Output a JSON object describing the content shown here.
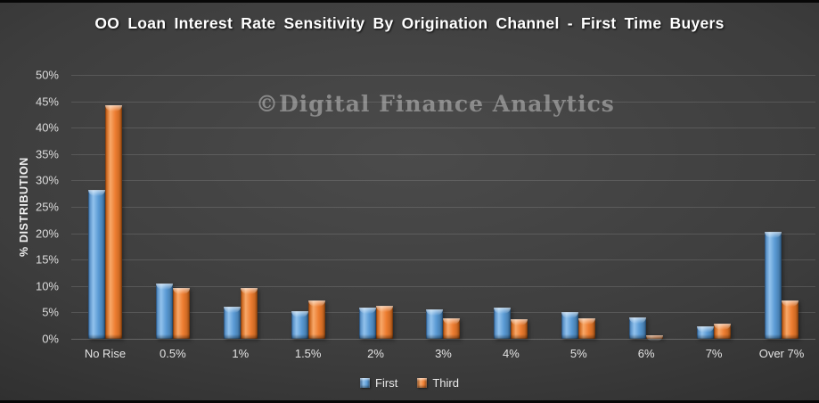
{
  "title": "OO Loan Interest Rate Sensitivity By Origination Channel - First Time Buyers",
  "watermark": "©Digital Finance Analytics",
  "colors": {
    "first_bar": "#5B9BD5",
    "third_bar": "#ED7D31",
    "background_center": "#4b4b4b",
    "background_edge": "#1d1d1d",
    "title_text": "#ffffff",
    "tick_text": "#dcdcdc",
    "watermark_text": "#9d9d9d"
  },
  "chart_data": {
    "type": "bar",
    "title": "OO Loan Interest Rate Sensitivity By Origination Channel - First Time Buyers",
    "xlabel": "",
    "ylabel": "% DISTRIBUTION",
    "ylim": [
      0,
      50
    ],
    "ytick_step": 5,
    "yticks": [
      "0%",
      "5%",
      "10%",
      "15%",
      "20%",
      "25%",
      "30%",
      "35%",
      "40%",
      "45%",
      "50%"
    ],
    "grid": true,
    "legend_position": "bottom",
    "categories": [
      "No Rise",
      "0.5%",
      "1%",
      "1.5%",
      "2%",
      "3%",
      "4%",
      "5%",
      "6%",
      "7%",
      "Over 7%"
    ],
    "series": [
      {
        "name": "First",
        "color": "#5B9BD5",
        "values": [
          28.2,
          10.5,
          6.0,
          5.3,
          5.9,
          5.5,
          5.9,
          5.0,
          4.0,
          2.4,
          20.3
        ]
      },
      {
        "name": "Third",
        "color": "#ED7D31",
        "values": [
          44.2,
          9.6,
          9.7,
          7.3,
          6.3,
          3.9,
          3.7,
          3.9,
          0.6,
          2.9,
          7.2
        ]
      }
    ]
  }
}
